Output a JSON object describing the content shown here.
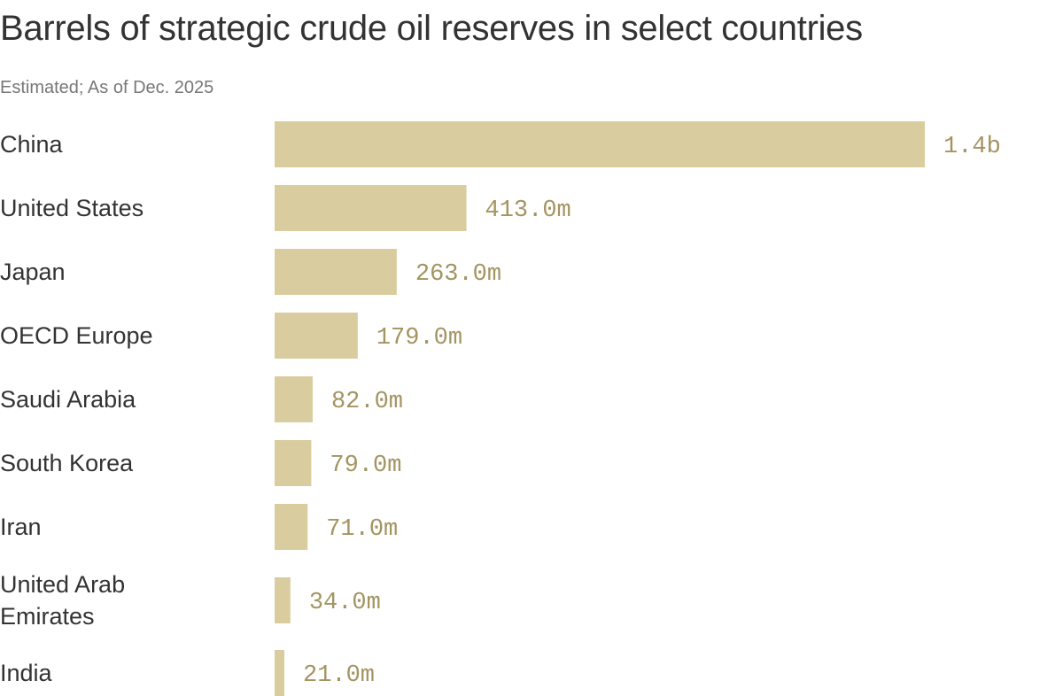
{
  "title": "Barrels of strategic crude oil reserves in select countries",
  "subtitle": "Estimated; As of Dec. 2025",
  "colors": {
    "bar": "#d9cd9f",
    "value_label": "#a39461",
    "text": "#333333"
  },
  "chart_data": {
    "type": "bar",
    "orientation": "horizontal",
    "title": "Barrels of strategic crude oil reserves in select countries",
    "subtitle": "Estimated; As of Dec. 2025",
    "categories": [
      "China",
      "United States",
      "Japan",
      "OECD Europe",
      "Saudi Arabia",
      "South Korea",
      "Iran",
      "United Arab Emirates",
      "India"
    ],
    "values": [
      1400,
      413,
      263,
      179,
      82,
      79,
      71,
      34,
      21
    ],
    "unit": "million barrels",
    "data_labels": [
      "1.4b",
      "413.0m",
      "263.0m",
      "179.0m",
      "82.0m",
      "79.0m",
      "71.0m",
      "34.0m",
      "21.0m"
    ],
    "grid": false,
    "legend": "none"
  }
}
